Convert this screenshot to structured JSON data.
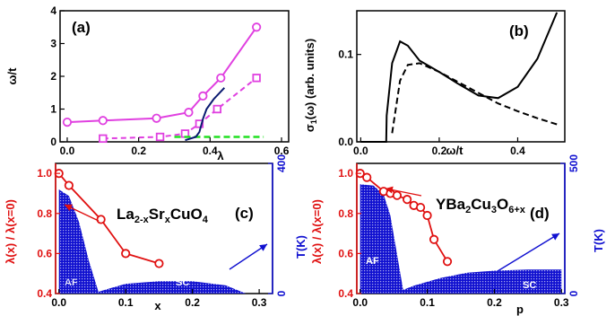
{
  "colors": {
    "magenta": "#e040e0",
    "green": "#20e020",
    "navy": "#0a1a70",
    "red": "#e01010",
    "blue": "#1010d0",
    "black": "#000000"
  },
  "chart_data": [
    {
      "id": "a",
      "type": "line",
      "label": "(a)",
      "xlabel": "λ",
      "ylabel": "ω/t",
      "xlim": [
        -0.02,
        0.62
      ],
      "ylim": [
        0,
        4
      ],
      "xticks": [
        "0.0",
        "0.2",
        "0.4",
        "0.6"
      ],
      "xtick_values": [
        0.0,
        0.2,
        0.4,
        0.6
      ],
      "yticks": [
        "0",
        "1",
        "2",
        "3",
        "4"
      ],
      "ytick_values": [
        0,
        1,
        2,
        3,
        4
      ],
      "series": [
        {
          "style": "magenta solid circle",
          "x": [
            0.0,
            0.1,
            0.25,
            0.34,
            0.38,
            0.43,
            0.53
          ],
          "y": [
            0.6,
            0.65,
            0.72,
            0.9,
            1.4,
            1.95,
            3.5
          ]
        },
        {
          "style": "magenta dashed square",
          "x": [
            0.1,
            0.26,
            0.33,
            0.37,
            0.42,
            0.53
          ],
          "y": [
            0.1,
            0.15,
            0.25,
            0.55,
            1.0,
            1.95
          ]
        },
        {
          "style": "green dashed",
          "x": [
            0.3,
            0.38,
            0.45,
            0.55
          ],
          "y": [
            0.15,
            0.15,
            0.15,
            0.15
          ]
        },
        {
          "style": "navy solid",
          "x": [
            0.33,
            0.36,
            0.37,
            0.38,
            0.39,
            0.41,
            0.44
          ],
          "y": [
            0.05,
            0.15,
            0.3,
            0.7,
            1.0,
            1.3,
            1.65
          ]
        }
      ]
    },
    {
      "id": "b",
      "type": "line",
      "label": "(b)",
      "xlabel": "ω/t",
      "ylabel": "σ1(ω) (arb. units)",
      "xlim": [
        -0.01,
        0.52
      ],
      "ylim": [
        0,
        0.15
      ],
      "xticks": [
        "0.0",
        "0.2",
        "0.4"
      ],
      "xtick_values": [
        0.0,
        0.2,
        0.4
      ],
      "yticks": [
        "0.0",
        "0.1"
      ],
      "ytick_values": [
        0.0,
        0.1
      ],
      "series": [
        {
          "style": "black solid",
          "x": [
            0.0,
            0.065,
            0.066,
            0.08,
            0.1,
            0.12,
            0.15,
            0.2,
            0.25,
            0.3,
            0.35,
            0.4,
            0.45,
            0.5
          ],
          "y": [
            0.0,
            0.0,
            0.03,
            0.09,
            0.115,
            0.11,
            0.093,
            0.08,
            0.066,
            0.053,
            0.05,
            0.063,
            0.095,
            0.148
          ]
        },
        {
          "style": "black dashed",
          "x": [
            0.08,
            0.1,
            0.12,
            0.15,
            0.2,
            0.25,
            0.3,
            0.35,
            0.4,
            0.45,
            0.5
          ],
          "y": [
            0.01,
            0.07,
            0.088,
            0.09,
            0.08,
            0.068,
            0.056,
            0.044,
            0.035,
            0.027,
            0.02
          ]
        }
      ]
    },
    {
      "id": "c",
      "type": "line",
      "label": "(c)",
      "xlabel": "x",
      "ylabel_left": "λ(x) / λ(x=0)",
      "ylabel_right": "T(K)",
      "formula": {
        "base": "La",
        "sub1": "2-x",
        "mid": "Sr",
        "sub2": "x",
        "tail": "CuO",
        "sub3": "4"
      },
      "xlim": [
        -0.005,
        0.32
      ],
      "ylim_left": [
        0.4,
        1.05
      ],
      "ylim_right": [
        0,
        400
      ],
      "xticks": [
        "0.0",
        "0.1",
        "0.2",
        "0.3"
      ],
      "xtick_values": [
        0.0,
        0.1,
        0.2,
        0.3
      ],
      "yticks_left": [
        "0.4",
        "0.6",
        "0.8",
        "1.0"
      ],
      "ytick_values_left": [
        0.4,
        0.6,
        0.8,
        1.0
      ],
      "yticks_right": [
        "0",
        "400"
      ],
      "ytick_values_right": [
        0,
        400
      ],
      "phase_labels": [
        "AF",
        "SC"
      ],
      "series": [
        {
          "style": "red circle",
          "x": [
            0.0,
            0.015,
            0.063,
            0.1,
            0.15
          ],
          "y": [
            1.0,
            0.94,
            0.77,
            0.6,
            0.55
          ]
        }
      ],
      "af_boundary": {
        "x": [
          0.0,
          0.015,
          0.03,
          0.045,
          0.06
        ],
        "T": [
          320,
          300,
          220,
          100,
          0
        ]
      },
      "sc_dome": {
        "x": [
          0.05,
          0.1,
          0.15,
          0.2,
          0.25,
          0.28
        ],
        "T": [
          0,
          30,
          38,
          38,
          25,
          0
        ]
      }
    },
    {
      "id": "d",
      "type": "line",
      "label": "(d)",
      "xlabel": "p",
      "ylabel_left": "λ(x) / λ(x=0)",
      "ylabel_right": "T(K)",
      "formula": {
        "base": "YBa",
        "sub1": "2",
        "mid": "Cu",
        "sub2": "3",
        "tail": "O",
        "sub3": "6+x"
      },
      "xlim": [
        -0.005,
        0.305
      ],
      "ylim_left": [
        0.4,
        1.05
      ],
      "ylim_right": [
        0,
        500
      ],
      "xticks": [
        "0.0",
        "0.1",
        "0.2",
        "0.3"
      ],
      "xtick_values": [
        0.0,
        0.1,
        0.2,
        0.3
      ],
      "yticks_left": [
        "0.4",
        "0.6",
        "0.8",
        "1.0"
      ],
      "ytick_values_left": [
        0.4,
        0.6,
        0.8,
        1.0
      ],
      "yticks_right": [
        "0",
        "500"
      ],
      "ytick_values_right": [
        0,
        500
      ],
      "phase_labels": [
        "AF",
        "SC"
      ],
      "series": [
        {
          "style": "red circle",
          "x": [
            0.0,
            0.01,
            0.035,
            0.045,
            0.055,
            0.07,
            0.08,
            0.09,
            0.1,
            0.11,
            0.13
          ],
          "y": [
            1.0,
            0.98,
            0.91,
            0.9,
            0.89,
            0.87,
            0.84,
            0.83,
            0.79,
            0.67,
            0.56
          ]
        }
      ],
      "af_boundary": {
        "x": [
          0.0,
          0.02,
          0.035,
          0.045,
          0.055,
          0.065
        ],
        "T": [
          420,
          415,
          380,
          300,
          150,
          0
        ]
      },
      "sc_dome": {
        "x": [
          0.05,
          0.08,
          0.12,
          0.16,
          0.2,
          0.25,
          0.3
        ],
        "T": [
          0,
          30,
          60,
          80,
          88,
          92,
          92
        ]
      }
    }
  ]
}
